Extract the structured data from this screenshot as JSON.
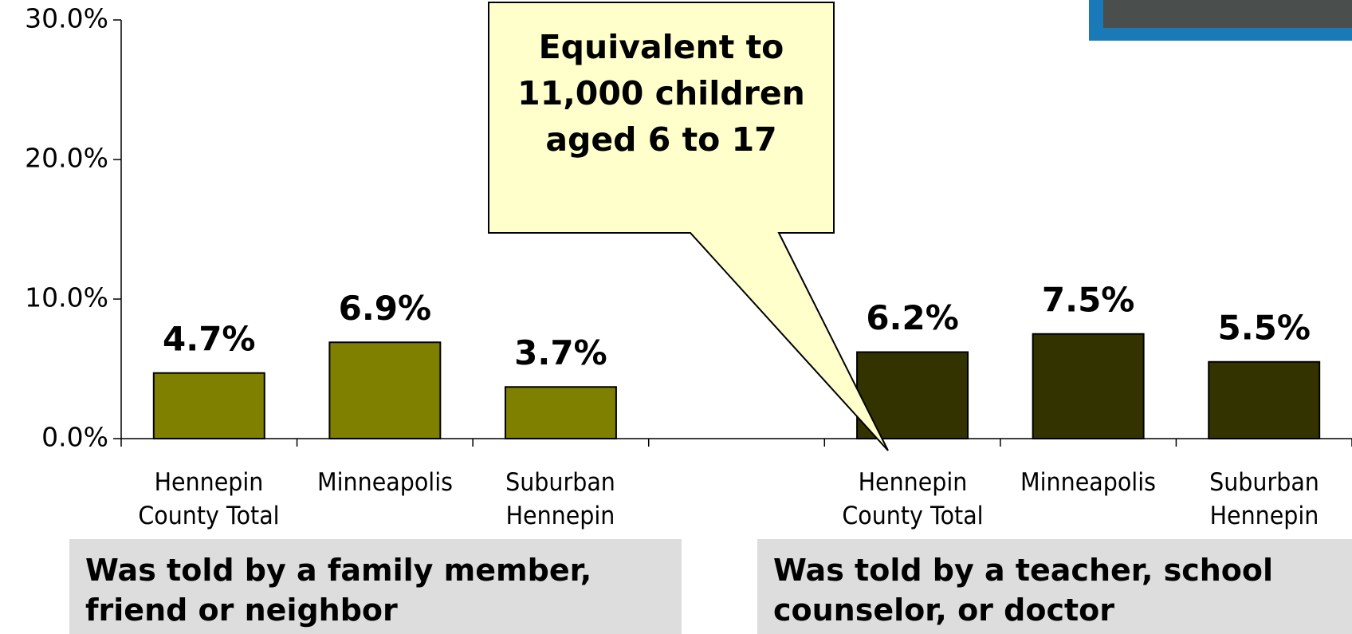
{
  "chart_data": {
    "type": "bar",
    "categories": [
      "Hennepin County Total",
      "Minneapolis",
      "Suburban Hennepin",
      null,
      "Hennepin County Total",
      "Minneapolis",
      "Suburban Hennepin"
    ],
    "values": [
      4.7,
      6.9,
      3.7,
      null,
      6.2,
      7.5,
      5.5
    ],
    "value_labels": [
      "4.7%",
      "6.9%",
      "3.7%",
      null,
      "6.2%",
      "7.5%",
      "5.5%"
    ],
    "colors": [
      "#808000",
      "#808000",
      "#808000",
      null,
      "#333300",
      "#333300",
      "#333300"
    ],
    "ylim": [
      0,
      30
    ],
    "yticks": [
      {
        "value": 0,
        "label": "0.0%"
      },
      {
        "value": 10,
        "label": "10.0%"
      },
      {
        "value": 20,
        "label": "20.0%"
      },
      {
        "value": 30,
        "label": "30.0%"
      }
    ],
    "grid": false,
    "annotation": "Equivalent to 11,000 children aged 6 to 17",
    "group_labels": [
      "Was told by a family member, friend or neighbor",
      "Was told by a teacher, school counselor, or doctor"
    ]
  }
}
